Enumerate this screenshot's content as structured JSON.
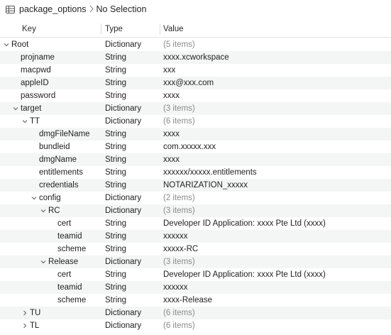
{
  "breadcrumb": {
    "file": "package_options",
    "selection": "No Selection"
  },
  "columns": {
    "key": "Key",
    "type": "Type",
    "value": "Value"
  },
  "rows": [
    {
      "key": "Root",
      "type": "Dictionary",
      "value": "(5 items)",
      "depth": 0,
      "disclosure": "expanded",
      "muted": true
    },
    {
      "key": "projname",
      "type": "String",
      "value": "xxxx.xcworkspace",
      "depth": 1,
      "disclosure": "none",
      "muted": false
    },
    {
      "key": "macpwd",
      "type": "String",
      "value": "xxx",
      "depth": 1,
      "disclosure": "none",
      "muted": false
    },
    {
      "key": "appleID",
      "type": "String",
      "value": "xxx@xxx.com",
      "depth": 1,
      "disclosure": "none",
      "muted": false
    },
    {
      "key": "password",
      "type": "String",
      "value": "xxxx",
      "depth": 1,
      "disclosure": "none",
      "muted": false
    },
    {
      "key": "target",
      "type": "Dictionary",
      "value": "(3 items)",
      "depth": 1,
      "disclosure": "expanded",
      "muted": true
    },
    {
      "key": "TT",
      "type": "Dictionary",
      "value": "(6 items)",
      "depth": 2,
      "disclosure": "expanded",
      "muted": true
    },
    {
      "key": "dmgFileName",
      "type": "String",
      "value": "xxxx",
      "depth": 3,
      "disclosure": "none",
      "muted": false
    },
    {
      "key": "bundleid",
      "type": "String",
      "value": "com.xxxxx.xxx",
      "depth": 3,
      "disclosure": "none",
      "muted": false
    },
    {
      "key": "dmgName",
      "type": "String",
      "value": "xxxx",
      "depth": 3,
      "disclosure": "none",
      "muted": false
    },
    {
      "key": "entitlements",
      "type": "String",
      "value": "xxxxxx/xxxxx.entitlements",
      "depth": 3,
      "disclosure": "none",
      "muted": false
    },
    {
      "key": "credentials",
      "type": "String",
      "value": "NOTARIZATION_xxxxx",
      "depth": 3,
      "disclosure": "none",
      "muted": false
    },
    {
      "key": "config",
      "type": "Dictionary",
      "value": "(2 items)",
      "depth": 3,
      "disclosure": "expanded",
      "muted": true
    },
    {
      "key": "RC",
      "type": "Dictionary",
      "value": "(3 items)",
      "depth": 4,
      "disclosure": "expanded",
      "muted": true
    },
    {
      "key": "cert",
      "type": "String",
      "value": "Developer ID Application: xxxx Pte Ltd (xxxx)",
      "depth": 5,
      "disclosure": "none",
      "muted": false
    },
    {
      "key": "teamid",
      "type": "String",
      "value": "xxxxxx",
      "depth": 5,
      "disclosure": "none",
      "muted": false
    },
    {
      "key": "scheme",
      "type": "String",
      "value": "xxxxx-RC",
      "depth": 5,
      "disclosure": "none",
      "muted": false
    },
    {
      "key": "Release",
      "type": "Dictionary",
      "value": "(3 items)",
      "depth": 4,
      "disclosure": "expanded",
      "muted": true
    },
    {
      "key": "cert",
      "type": "String",
      "value": "Developer ID Application: xxxx Pte Ltd (xxxx)",
      "depth": 5,
      "disclosure": "none",
      "muted": false
    },
    {
      "key": "teamid",
      "type": "String",
      "value": "xxxxxx",
      "depth": 5,
      "disclosure": "none",
      "muted": false
    },
    {
      "key": "scheme",
      "type": "String",
      "value": "xxxx-Release",
      "depth": 5,
      "disclosure": "none",
      "muted": false
    },
    {
      "key": "TU",
      "type": "Dictionary",
      "value": "(6 items)",
      "depth": 2,
      "disclosure": "collapsed",
      "muted": true
    },
    {
      "key": "TL",
      "type": "Dictionary",
      "value": "(6 items)",
      "depth": 2,
      "disclosure": "collapsed",
      "muted": true
    }
  ]
}
